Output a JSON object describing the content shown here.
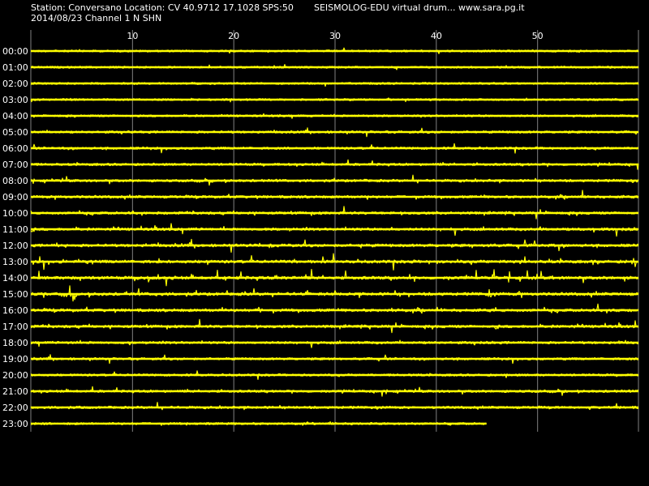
{
  "header": {
    "station_line": "Station: Conversano Location: CV 40.9712 17.1028 SPS:50",
    "date_line": "2014/08/23  Channel 1 N SHN",
    "source_line": "SEISMOLOG-EDU virtual drum... www.sara.pg.it"
  },
  "chart_data": {
    "type": "line",
    "title": "",
    "xlabel": "",
    "ylabel": "",
    "x_ticks": [
      10,
      20,
      30,
      40,
      50
    ],
    "xlim": [
      0,
      60
    ],
    "grid": true,
    "trace_color": "#ffff00",
    "grid_color": "#808080",
    "hour_labels": [
      "00:00",
      "01:00",
      "02:00",
      "03:00",
      "04:00",
      "05:00",
      "06:00",
      "07:00",
      "08:00",
      "09:00",
      "10:00",
      "11:00",
      "12:00",
      "13:00",
      "14:00",
      "15:00",
      "16:00",
      "17:00",
      "18:00",
      "19:00",
      "20:00",
      "21:00",
      "22:00",
      "23:00"
    ],
    "rows_recorded_minutes": [
      60,
      60,
      60,
      60,
      60,
      60,
      60,
      60,
      60,
      60,
      60,
      60,
      60,
      60,
      60,
      60,
      60,
      60,
      60,
      60,
      60,
      60,
      60,
      45
    ],
    "activity_level": [
      0.35,
      0.35,
      0.35,
      0.35,
      0.45,
      0.55,
      0.55,
      0.6,
      0.65,
      0.75,
      0.75,
      0.8,
      0.8,
      0.95,
      1.0,
      1.0,
      0.9,
      0.8,
      0.65,
      0.55,
      0.5,
      0.6,
      0.6,
      0.55
    ]
  }
}
